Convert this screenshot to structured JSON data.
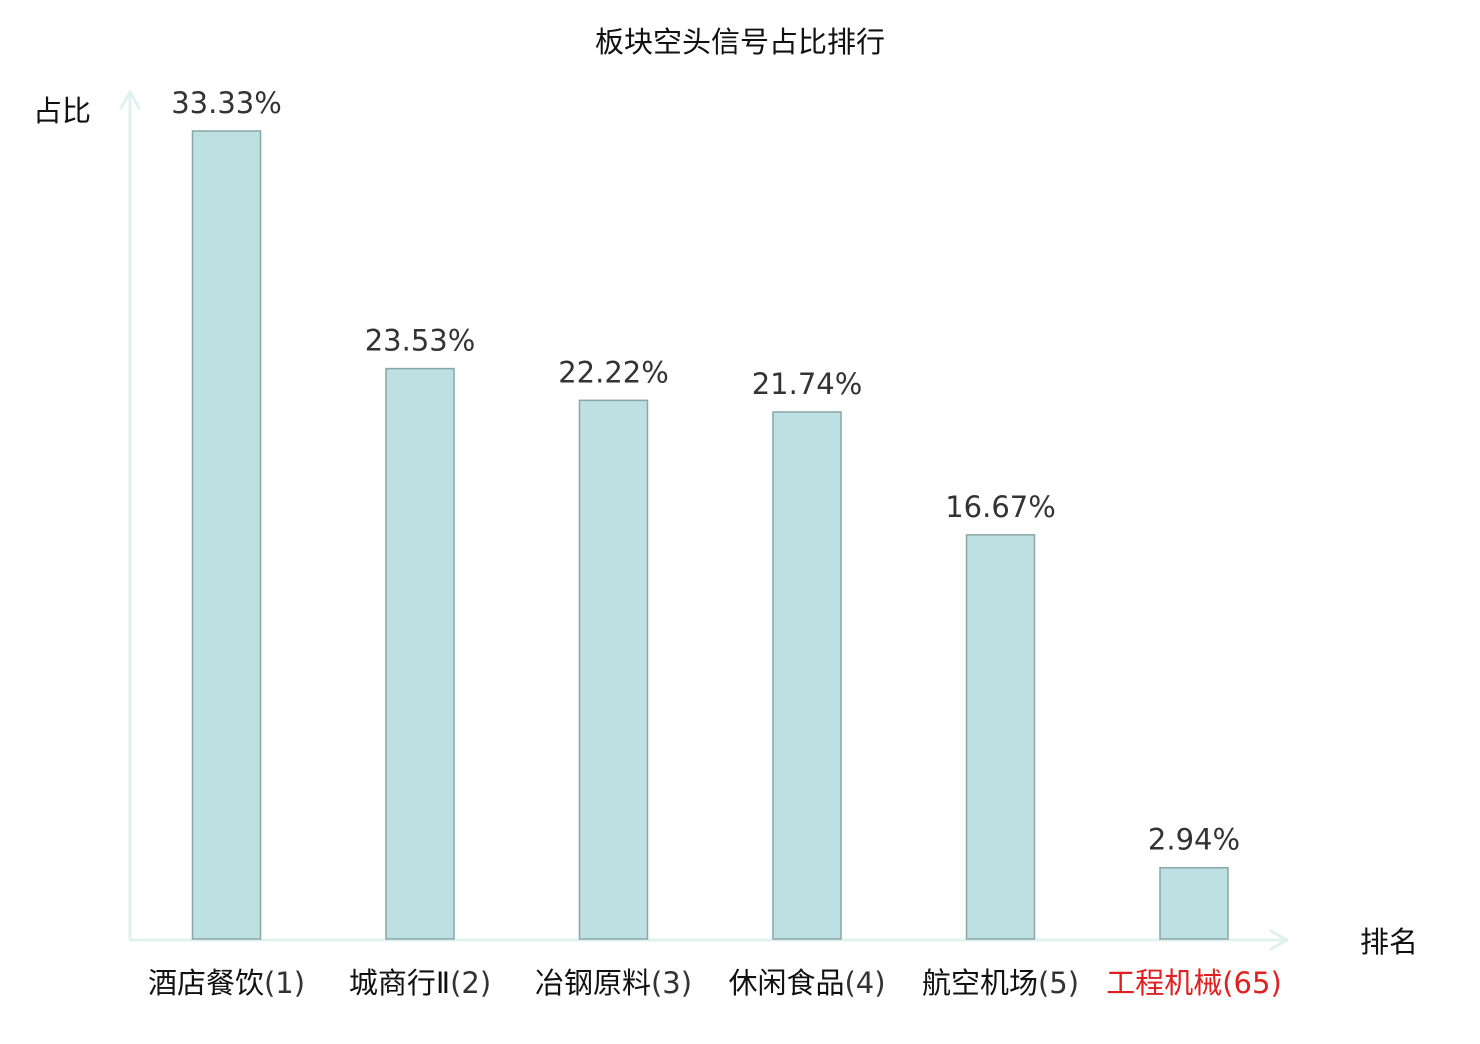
{
  "chart_data": {
    "type": "bar",
    "title": "板块空头信号占比排行",
    "ylabel": "占比",
    "xlabel": "排名",
    "categories": [
      {
        "name": "酒店餐饮",
        "rank": "(1)",
        "highlight": false
      },
      {
        "name": "城商行Ⅱ",
        "rank": "(2)",
        "highlight": false
      },
      {
        "name": "冶钢原料",
        "rank": "(3)",
        "highlight": false
      },
      {
        "name": "休闲食品",
        "rank": "(4)",
        "highlight": false
      },
      {
        "name": "航空机场",
        "rank": "(5)",
        "highlight": false
      },
      {
        "name": "工程机械",
        "rank": "(65)",
        "highlight": true
      }
    ],
    "values": [
      33.33,
      23.53,
      22.22,
      21.74,
      16.67,
      2.94
    ],
    "value_labels": [
      "33.33%",
      "23.53%",
      "22.22%",
      "21.74%",
      "16.67%",
      "2.94%"
    ],
    "ylim": [
      0,
      33.33
    ],
    "grid": false,
    "legend": "none"
  },
  "colors": {
    "bar_fill": "#bde0e2",
    "bar_stroke": "#8aa6a8",
    "axis": "#e0f2ef",
    "text": "#333333",
    "title_text": "#111111",
    "highlight": "#e02020"
  }
}
